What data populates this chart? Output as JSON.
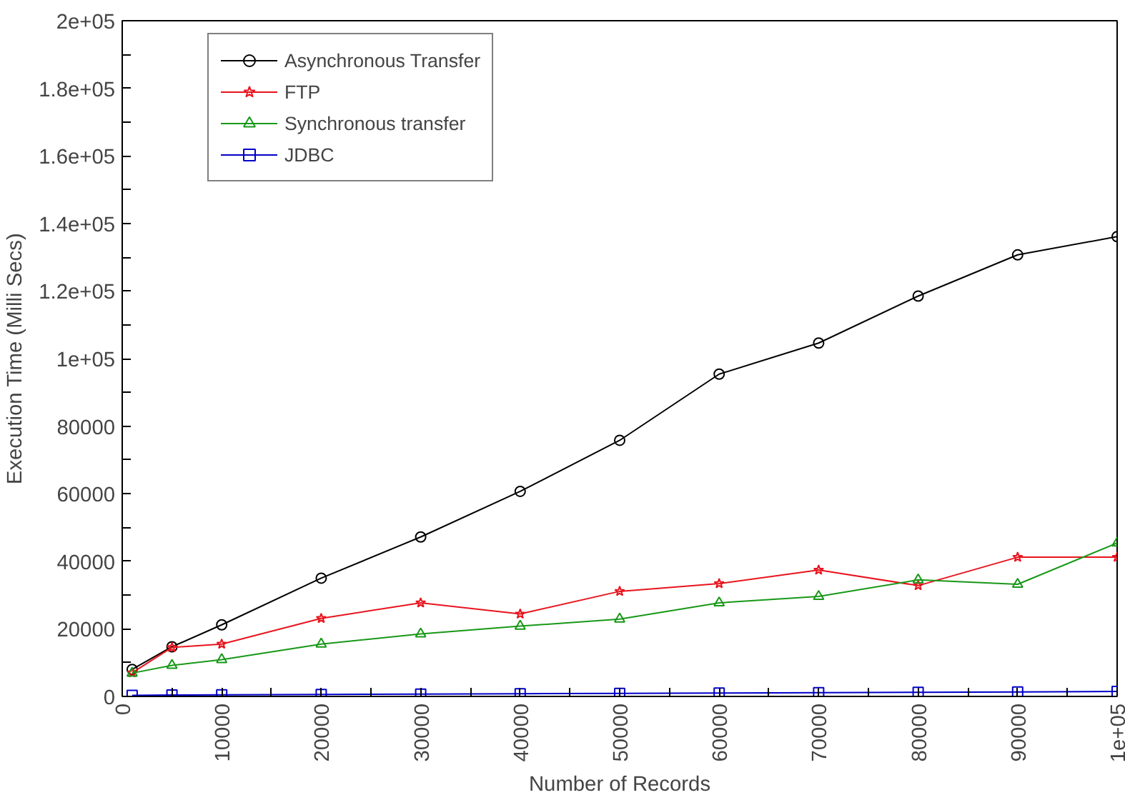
{
  "chart_data": {
    "type": "line",
    "xlabel": "Number of Records",
    "ylabel": "Execution Time (Milli Secs)",
    "x": [
      1000,
      5000,
      10000,
      20000,
      30000,
      40000,
      50000,
      60000,
      70000,
      80000,
      90000,
      100000
    ],
    "series": [
      {
        "name": "Asynchronous Transfer",
        "color": "#000000",
        "marker": "circle",
        "values": [
          8000,
          14700,
          21200,
          35000,
          47200,
          60700,
          75800,
          95400,
          104600,
          118500,
          130700,
          136100
        ]
      },
      {
        "name": "FTP",
        "color": "#e8141e",
        "marker": "star",
        "values": [
          7000,
          14500,
          15500,
          23100,
          27700,
          24400,
          31100,
          33400,
          37400,
          32800,
          41200,
          41200
        ]
      },
      {
        "name": "Synchronous transfer",
        "color": "#189818",
        "marker": "triangle",
        "values": [
          6900,
          9200,
          10900,
          15500,
          18500,
          20800,
          22900,
          27700,
          29600,
          34500,
          33200,
          45400
        ]
      },
      {
        "name": "JDBC",
        "color": "#0000c8",
        "marker": "square",
        "values": [
          300,
          400,
          500,
          600,
          700,
          800,
          900,
          1000,
          1100,
          1200,
          1300,
          1500
        ]
      }
    ],
    "xlim": [
      0,
      100000
    ],
    "ylim": [
      0,
      200000
    ],
    "xticks": [
      0,
      {
        "value": 5000,
        "label": null
      },
      10000,
      {
        "value": 15000,
        "label": null
      },
      20000,
      {
        "value": 25000,
        "label": null
      },
      30000,
      {
        "value": 35000,
        "label": null
      },
      40000,
      {
        "value": 45000,
        "label": null
      },
      50000,
      {
        "value": 55000,
        "label": null
      },
      60000,
      {
        "value": 65000,
        "label": null
      },
      70000,
      {
        "value": 75000,
        "label": null
      },
      80000,
      {
        "value": 85000,
        "label": null
      },
      90000,
      {
        "value": 95000,
        "label": null
      },
      {
        "value": 100000,
        "label": "1e+05"
      }
    ],
    "yticks": [
      0,
      {
        "value": 10000,
        "label": null
      },
      20000,
      {
        "value": 30000,
        "label": null
      },
      40000,
      {
        "value": 50000,
        "label": null
      },
      60000,
      {
        "value": 70000,
        "label": null
      },
      80000,
      {
        "value": 90000,
        "label": null
      },
      {
        "value": 100000,
        "label": "1e+05"
      },
      {
        "value": 110000,
        "label": null
      },
      {
        "value": 120000,
        "label": "1.2e+05"
      },
      {
        "value": 130000,
        "label": null
      },
      {
        "value": 140000,
        "label": "1.4e+05"
      },
      {
        "value": 150000,
        "label": null
      },
      {
        "value": 160000,
        "label": "1.6e+05"
      },
      {
        "value": 170000,
        "label": null
      },
      {
        "value": 180000,
        "label": "1.8e+05"
      },
      {
        "value": 190000,
        "label": null
      },
      {
        "value": 200000,
        "label": "2e+05"
      }
    ],
    "grid": false,
    "legend": "top left",
    "line_style": "solid"
  }
}
